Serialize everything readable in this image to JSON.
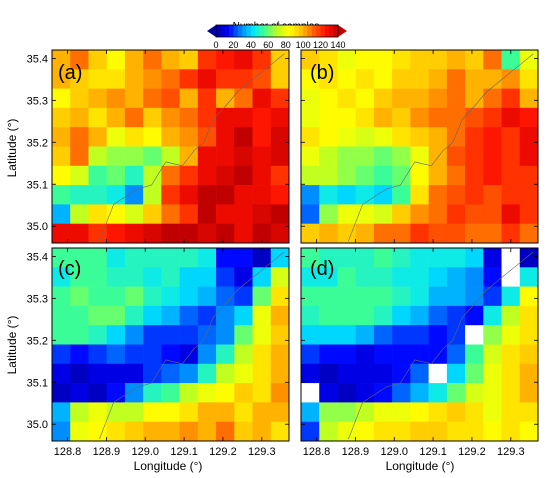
{
  "colorbar": {
    "title": "Number of samples",
    "ticks": [
      "0",
      "20",
      "40",
      "60",
      "80",
      "100",
      "120",
      "140"
    ],
    "range": [
      0,
      140
    ],
    "colormap": [
      "#0000a0",
      "#0000ff",
      "#0080ff",
      "#00e5ff",
      "#40ff90",
      "#c0ff20",
      "#ffff00",
      "#ffc000",
      "#ff6000",
      "#ff1000",
      "#c00000"
    ]
  },
  "axes": {
    "xlabel": "Longitude (°)",
    "ylabel": "Latitude (°)",
    "xticks": [
      "128.8",
      "128.9",
      "129.0",
      "129.1",
      "129.2",
      "129.3"
    ],
    "yticks": [
      "35.0",
      "35.1",
      "35.2",
      "35.3",
      "35.4"
    ]
  },
  "chart_data": [
    {
      "type": "heatmap",
      "panel_label": "(a)",
      "xlim": [
        128.76,
        129.37
      ],
      "ylim": [
        34.96,
        35.42
      ],
      "grid": [
        [
          100,
          110,
          95,
          85,
          100,
          110,
          100,
          95,
          120,
          125,
          130,
          120,
          95
        ],
        [
          100,
          95,
          90,
          90,
          100,
          105,
          110,
          120,
          130,
          120,
          120,
          115,
          95
        ],
        [
          85,
          95,
          100,
          105,
          100,
          110,
          115,
          100,
          120,
          100,
          110,
          130,
          120
        ],
        [
          95,
          100,
          90,
          100,
          110,
          95,
          105,
          110,
          120,
          130,
          130,
          125,
          130
        ],
        [
          100,
          110,
          100,
          80,
          90,
          85,
          100,
          105,
          115,
          130,
          140,
          125,
          135
        ],
        [
          95,
          110,
          70,
          65,
          65,
          60,
          70,
          100,
          130,
          130,
          135,
          130,
          135
        ],
        [
          85,
          75,
          55,
          60,
          50,
          70,
          110,
          120,
          130,
          135,
          140,
          130,
          120
        ],
        [
          55,
          50,
          50,
          45,
          30,
          70,
          120,
          130,
          140,
          140,
          130,
          130,
          125
        ],
        [
          35,
          70,
          90,
          85,
          75,
          95,
          110,
          120,
          140,
          130,
          130,
          135,
          140
        ],
        [
          130,
          130,
          120,
          125,
          130,
          135,
          140,
          140,
          135,
          140,
          130,
          140,
          135
        ]
      ]
    },
    {
      "type": "heatmap",
      "panel_label": "(b)",
      "xlim": [
        128.76,
        129.37
      ],
      "ylim": [
        34.96,
        35.42
      ],
      "grid": [
        [
          95,
          90,
          80,
          85,
          85,
          90,
          95,
          95,
          100,
          95,
          110,
          55,
          80
        ],
        [
          85,
          90,
          85,
          90,
          85,
          95,
          95,
          100,
          110,
          100,
          100,
          105,
          90
        ],
        [
          80,
          85,
          90,
          85,
          95,
          100,
          100,
          105,
          110,
          100,
          110,
          120,
          100
        ],
        [
          80,
          85,
          85,
          90,
          100,
          95,
          105,
          110,
          110,
          115,
          120,
          130,
          125
        ],
        [
          90,
          85,
          80,
          75,
          80,
          90,
          95,
          100,
          110,
          120,
          125,
          120,
          130
        ],
        [
          80,
          70,
          65,
          65,
          60,
          65,
          80,
          100,
          115,
          120,
          125,
          120,
          130
        ],
        [
          70,
          70,
          65,
          60,
          55,
          60,
          85,
          100,
          110,
          120,
          125,
          120,
          120
        ],
        [
          30,
          45,
          40,
          45,
          40,
          55,
          90,
          110,
          115,
          120,
          115,
          120,
          120
        ],
        [
          25,
          65,
          80,
          80,
          75,
          95,
          105,
          110,
          120,
          115,
          115,
          130,
          120
        ],
        [
          95,
          100,
          95,
          100,
          110,
          110,
          120,
          115,
          115,
          110,
          110,
          120,
          110
        ]
      ]
    },
    {
      "type": "heatmap",
      "panel_label": "(c)",
      "xlim": [
        128.76,
        129.37
      ],
      "ylim": [
        34.96,
        35.42
      ],
      "grid": [
        [
          55,
          55,
          55,
          45,
          50,
          50,
          50,
          50,
          45,
          15,
          15,
          5,
          40
        ],
        [
          45,
          55,
          55,
          50,
          50,
          45,
          50,
          40,
          40,
          20,
          10,
          40,
          75
        ],
        [
          55,
          60,
          55,
          55,
          60,
          50,
          45,
          40,
          35,
          25,
          20,
          60,
          90
        ],
        [
          55,
          55,
          60,
          60,
          50,
          40,
          35,
          25,
          20,
          30,
          40,
          80,
          100
        ],
        [
          55,
          55,
          50,
          40,
          30,
          20,
          20,
          20,
          25,
          30,
          60,
          80,
          95
        ],
        [
          20,
          15,
          20,
          25,
          20,
          20,
          15,
          10,
          30,
          50,
          70,
          90,
          100
        ],
        [
          10,
          5,
          10,
          10,
          10,
          20,
          25,
          30,
          50,
          70,
          80,
          90,
          100
        ],
        [
          5,
          10,
          5,
          15,
          30,
          50,
          55,
          70,
          80,
          85,
          95,
          90,
          105
        ],
        [
          35,
          70,
          80,
          70,
          70,
          85,
          85,
          90,
          100,
          100,
          90,
          100,
          100
        ],
        [
          30,
          80,
          85,
          90,
          95,
          100,
          100,
          105,
          100,
          110,
          95,
          100,
          90
        ]
      ]
    },
    {
      "type": "heatmap",
      "panel_label": "(d)",
      "xlim": [
        128.76,
        129.37
      ],
      "ylim": [
        34.96,
        35.42
      ],
      "grid": [
        [
          55,
          50,
          50,
          50,
          55,
          50,
          45,
          45,
          45,
          40,
          10,
          null,
          5
        ],
        [
          45,
          45,
          55,
          50,
          50,
          45,
          45,
          40,
          35,
          30,
          15,
          null,
          45
        ],
        [
          55,
          55,
          55,
          55,
          55,
          50,
          45,
          35,
          35,
          30,
          20,
          45,
          85
        ],
        [
          50,
          55,
          55,
          55,
          50,
          40,
          35,
          25,
          20,
          15,
          45,
          70,
          90
        ],
        [
          40,
          40,
          40,
          35,
          25,
          20,
          20,
          15,
          20,
          null,
          65,
          80,
          90
        ],
        [
          20,
          15,
          15,
          10,
          15,
          15,
          15,
          15,
          25,
          55,
          75,
          90,
          95
        ],
        [
          10,
          5,
          10,
          10,
          10,
          15,
          25,
          null,
          40,
          60,
          80,
          90,
          100
        ],
        [
          null,
          10,
          5,
          10,
          15,
          25,
          35,
          45,
          60,
          75,
          80,
          90,
          100
        ],
        [
          35,
          65,
          65,
          70,
          80,
          80,
          85,
          90,
          95,
          90,
          80,
          90,
          90
        ],
        [
          20,
          70,
          80,
          85,
          90,
          90,
          95,
          95,
          90,
          90,
          85,
          90,
          85
        ]
      ]
    }
  ]
}
